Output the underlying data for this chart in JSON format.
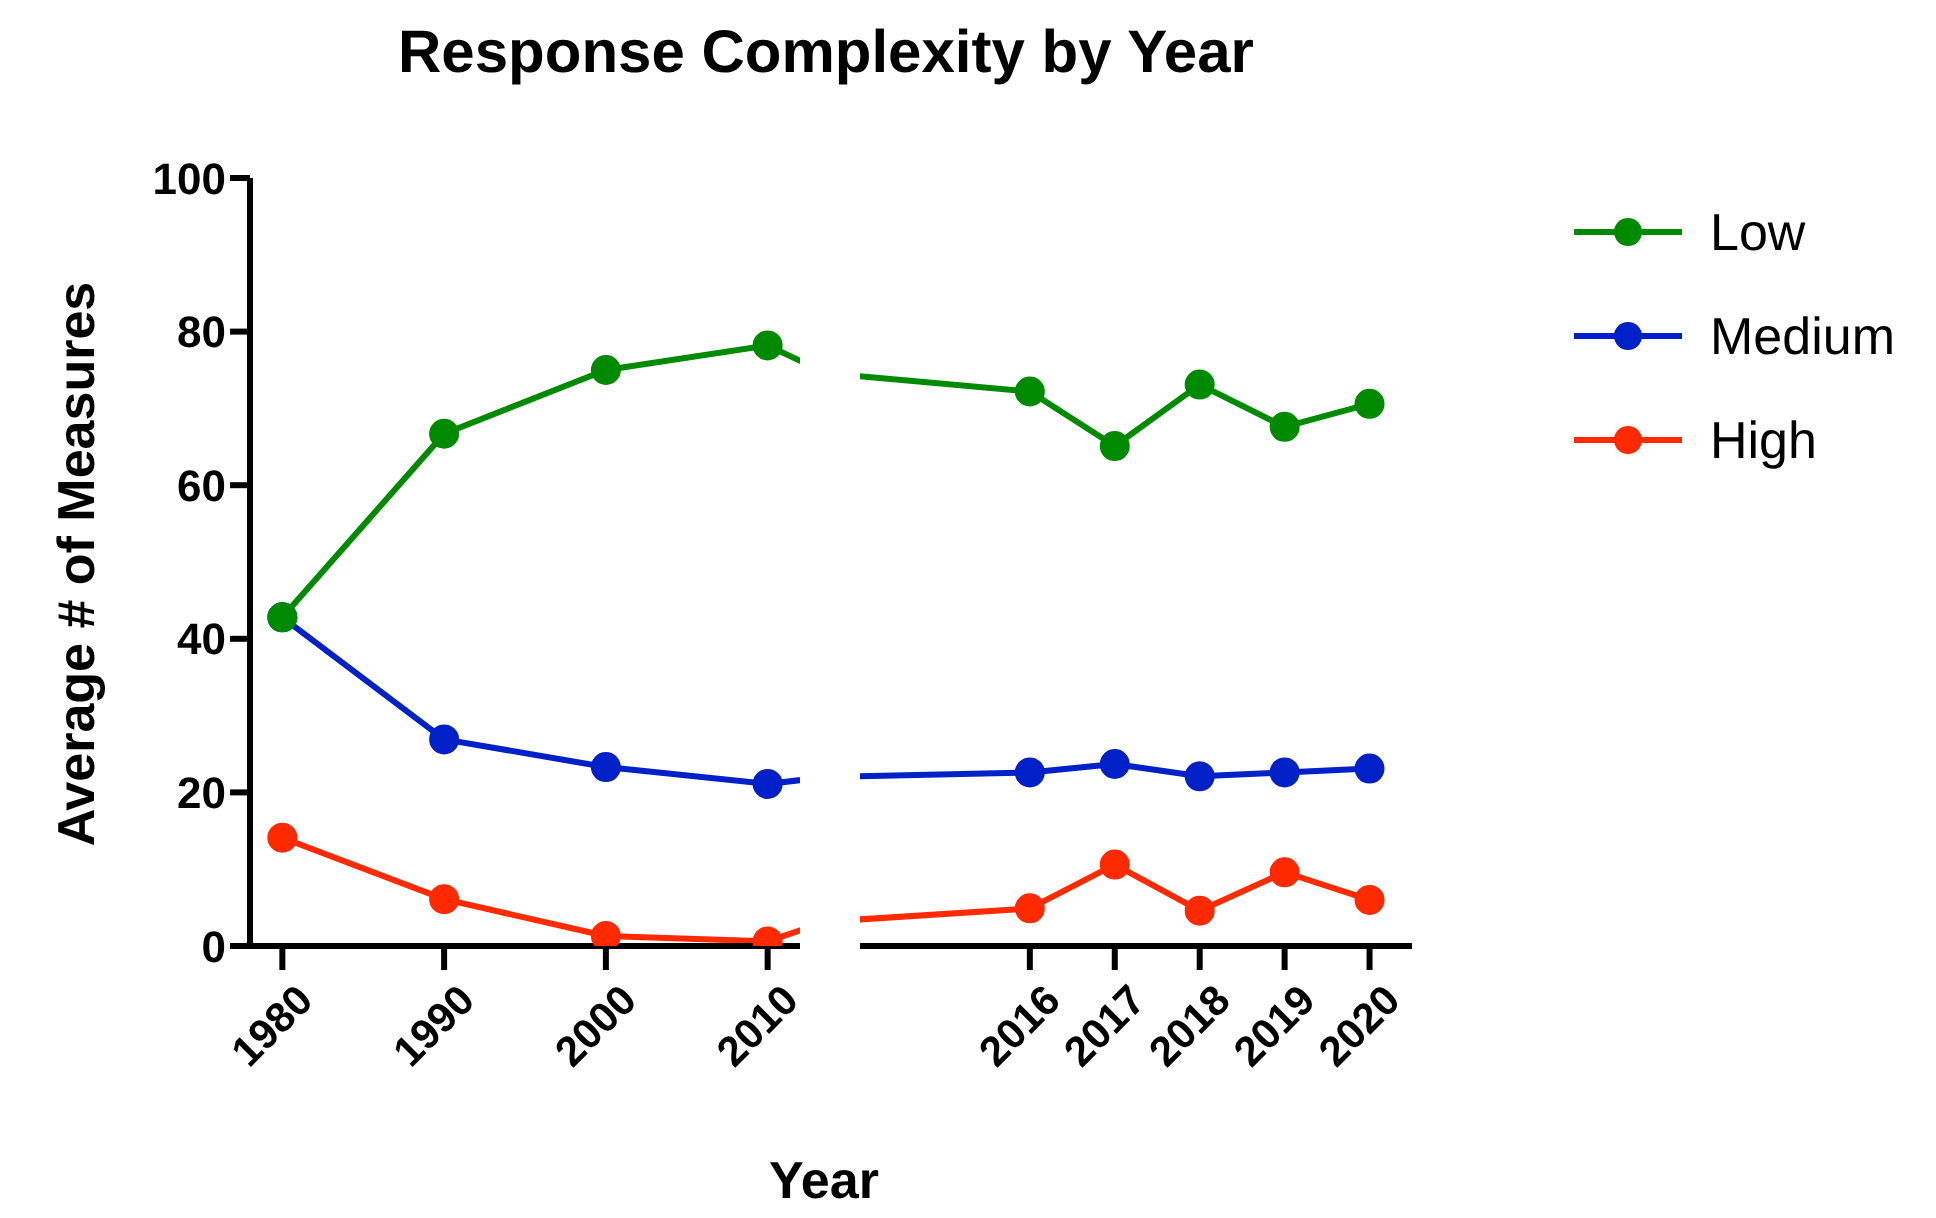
{
  "chart_data": [
    {
      "type": "line",
      "title": "Response Complexity by Year",
      "xlabel": "Year",
      "ylabel": "Average # of Measures",
      "x": [
        1980,
        1990,
        2000,
        2010
      ],
      "xlim": [
        1978,
        2012
      ],
      "xticks": [
        1980,
        1990,
        2000,
        2010
      ],
      "ylim": [
        0,
        100
      ],
      "yticks": [
        0,
        20,
        40,
        60,
        80,
        100
      ],
      "marker": "circle",
      "grid": false,
      "legend": false,
      "series": [
        {
          "color": "#008a00",
          "values": [
            42.8,
            66.7,
            75,
            78.2
          ]
        },
        {
          "color": "#0020c8",
          "values": [
            42.8,
            26.9,
            23.3,
            21.1
          ]
        },
        {
          "color": "#ff2a00",
          "values": [
            14.1,
            6.1,
            1.3,
            0.6
          ]
        }
      ]
    },
    {
      "type": "line",
      "x": [
        2016,
        2017,
        2018,
        2019,
        2020
      ],
      "xlim": [
        2014,
        2020.5
      ],
      "xticks": [
        2016,
        2017,
        2018,
        2019,
        2020
      ],
      "ylim": [
        0,
        100
      ],
      "yticks": [
        0,
        20,
        40,
        60,
        80,
        100
      ],
      "tick_labels": "x",
      "marker": "circle",
      "grid": false,
      "legend": "top right",
      "series": [
        {
          "name": "Low",
          "color": "#008a00",
          "values": [
            72.2,
            65.1,
            73.1,
            67.6,
            70.6
          ]
        },
        {
          "name": "Medium",
          "color": "#0020c8",
          "values": [
            22.6,
            23.7,
            22.1,
            22.6,
            23.1
          ]
        },
        {
          "name": "High",
          "color": "#ff2a00",
          "values": [
            4.9,
            10.6,
            4.6,
            9.6,
            6.0
          ]
        }
      ]
    }
  ]
}
